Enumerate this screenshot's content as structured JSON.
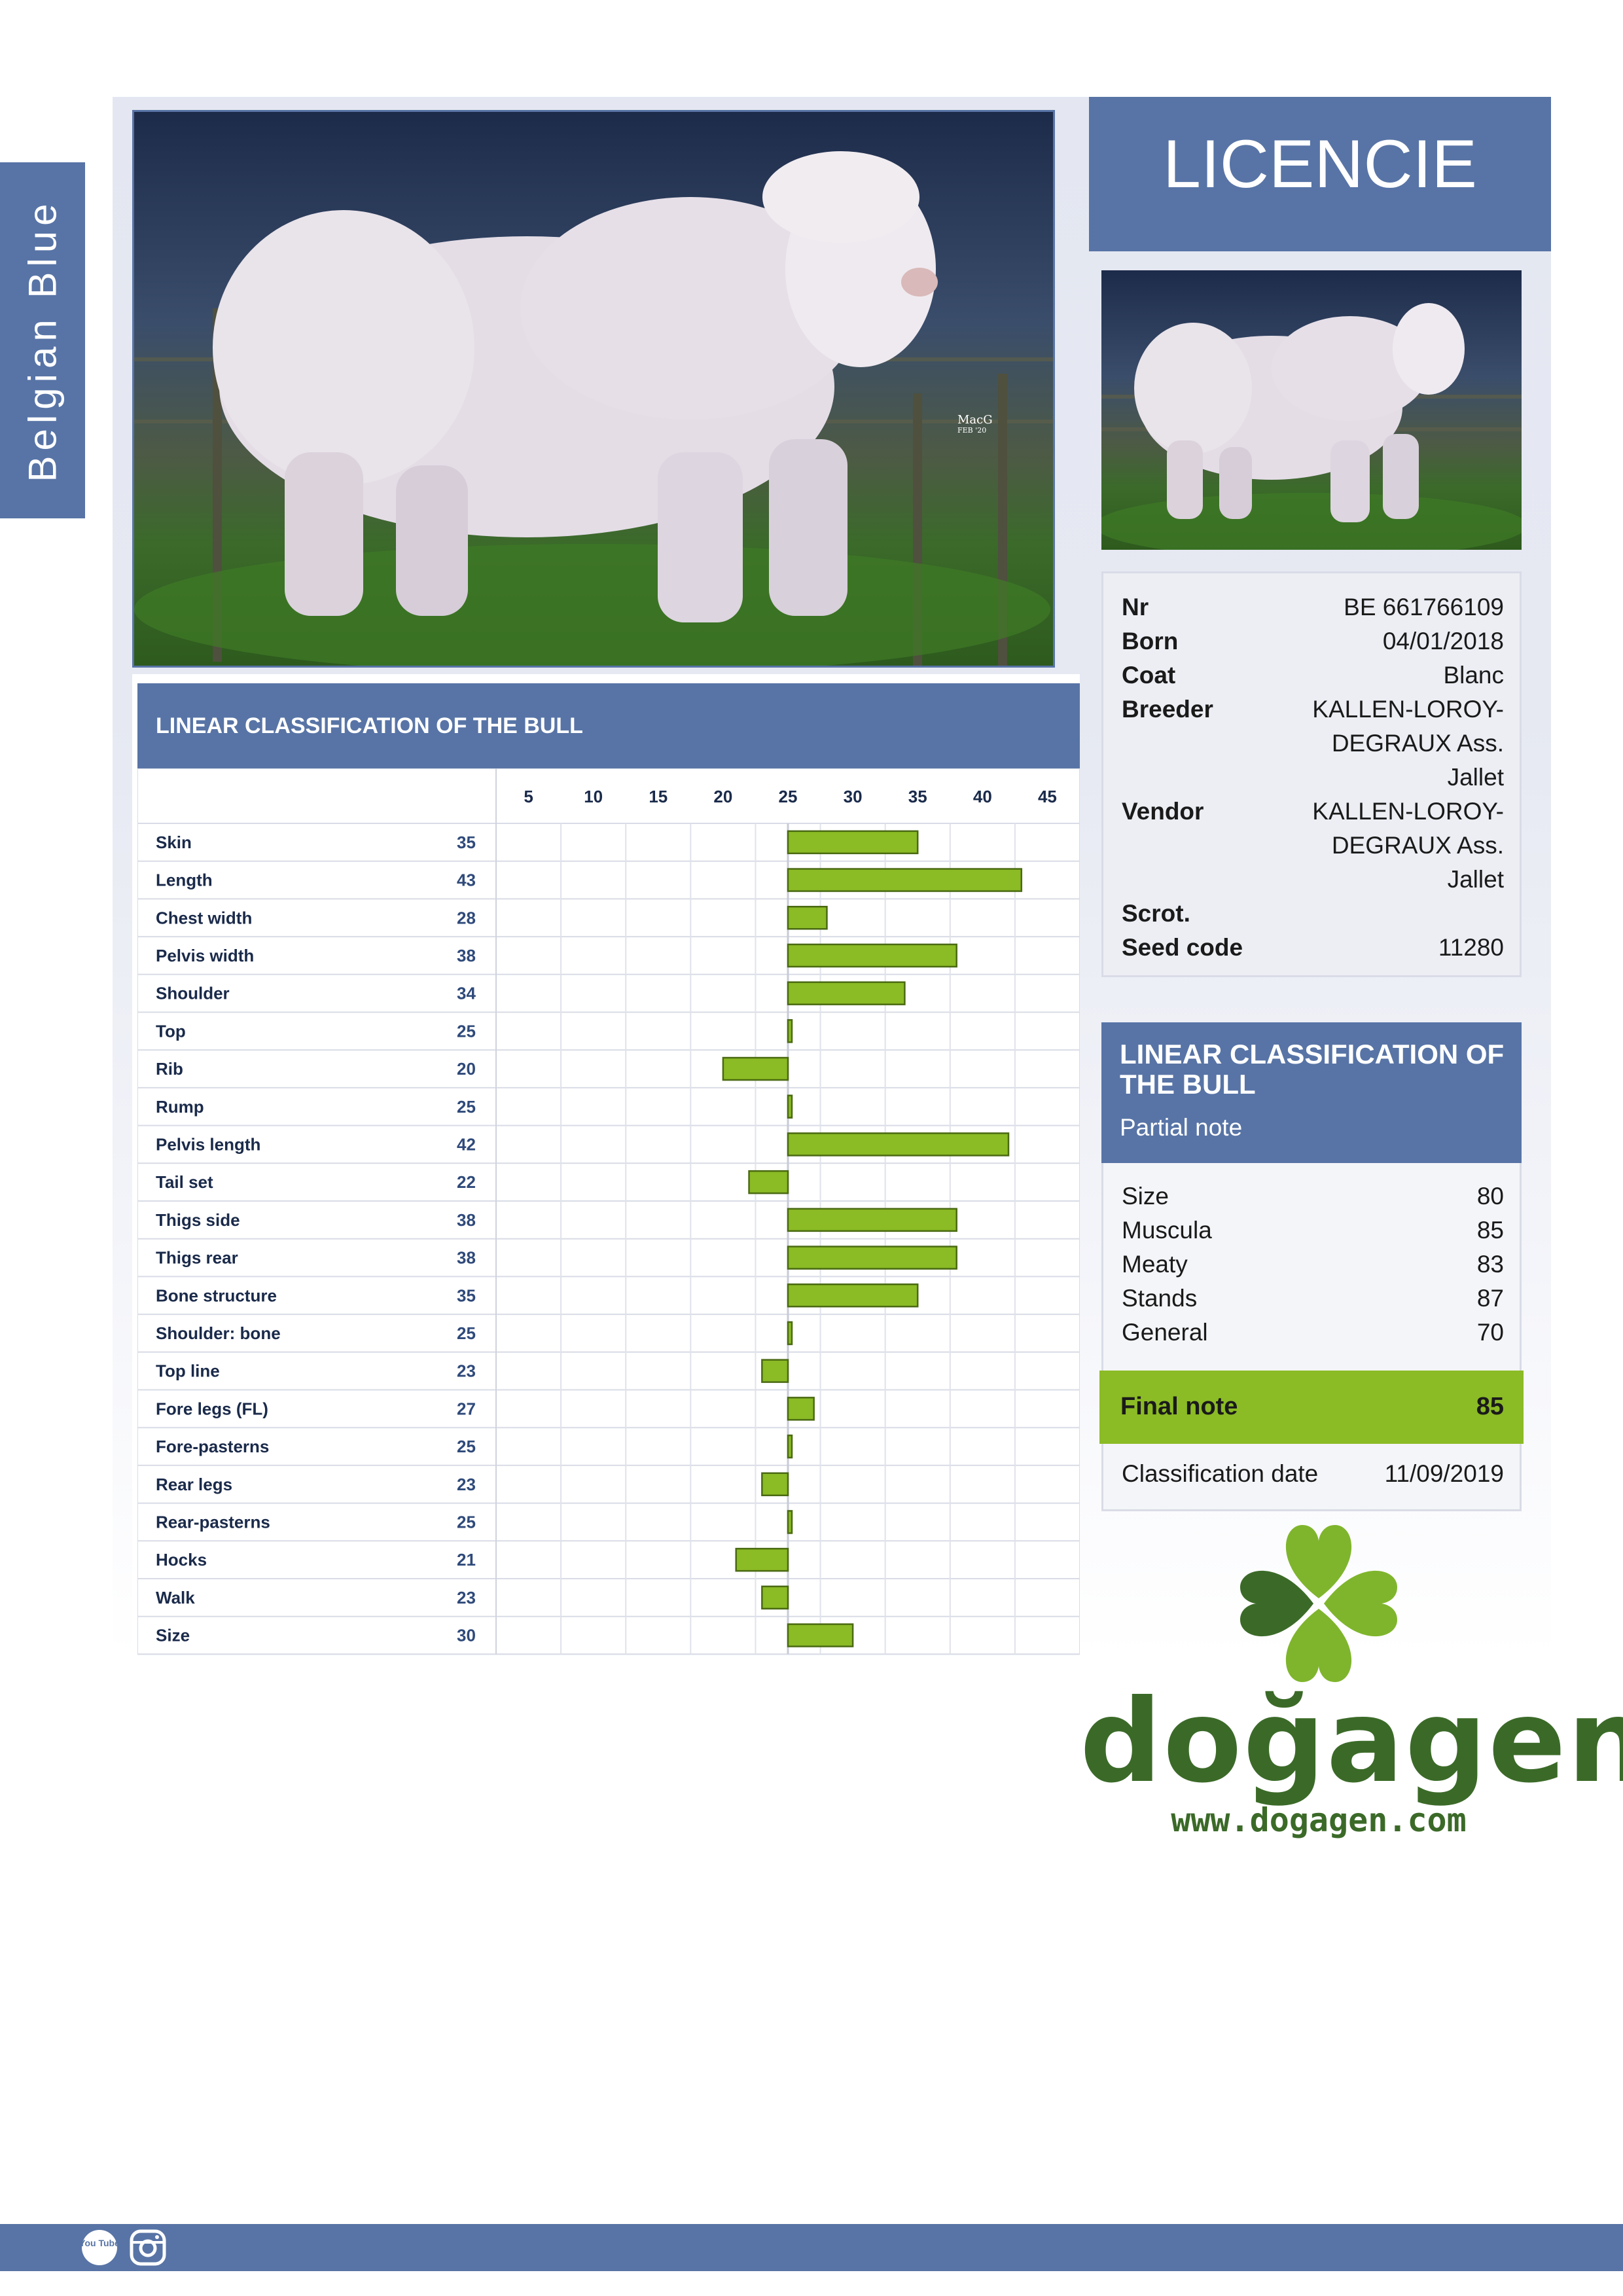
{
  "side_tab": {
    "label": "Belgian Blue"
  },
  "header": {
    "title": "LICENCIE"
  },
  "photo": {
    "watermark": "MacG",
    "watermark_date": "FEB '20"
  },
  "info": {
    "rows": [
      {
        "key": "Nr",
        "value": "BE 661766109"
      },
      {
        "key": "Born",
        "value": "04/01/2018"
      },
      {
        "key": "Coat",
        "value": "Blanc"
      },
      {
        "key": "Breeder",
        "value": "KALLEN-LOROY-DEGRAUX Ass. Jallet"
      },
      {
        "key": "Vendor",
        "value": "KALLEN-LOROY-DEGRAUX Ass. Jallet"
      },
      {
        "key": "Scrot.",
        "value": ""
      },
      {
        "key": "Seed code",
        "value": "11280"
      }
    ]
  },
  "linear_classification": {
    "title": "LINEAR CLASSIFICATION OF THE BULL",
    "subtitle": "Partial note",
    "partial_notes": [
      {
        "key": "Size",
        "value": "80"
      },
      {
        "key": "Muscula",
        "value": "85"
      },
      {
        "key": "Meaty",
        "value": "83"
      },
      {
        "key": "Stands",
        "value": "87"
      },
      {
        "key": "General",
        "value": "70"
      }
    ],
    "final_note_label": "Final note",
    "final_note_value": "85",
    "classification_date_label": "Classification date",
    "classification_date_value": "11/09/2019"
  },
  "chart_title": "LINEAR CLASSIFICATION OF THE BULL",
  "chart_data": {
    "type": "bar",
    "orientation": "horizontal",
    "title": "LINEAR CLASSIFICATION OF THE BULL",
    "baseline": 25,
    "xlim": [
      2.5,
      47.5
    ],
    "xticks": [
      5,
      10,
      15,
      20,
      25,
      30,
      35,
      40,
      45
    ],
    "grid": true,
    "bar_color": "#8bbb25",
    "categories": [
      "Skin",
      "Length",
      "Chest width",
      "Pelvis width",
      "Shoulder",
      "Top",
      "Rib",
      "Rump",
      "Pelvis length",
      "Tail set",
      "Thigs side",
      "Thigs rear",
      "Bone structure",
      "Shoulder: bone",
      "Top line",
      "Fore legs (FL)",
      "Fore-pasterns",
      "Rear legs",
      "Rear-pasterns",
      "Hocks",
      "Walk",
      "Size"
    ],
    "values": [
      35,
      43,
      28,
      38,
      34,
      25,
      20,
      25,
      42,
      22,
      38,
      38,
      35,
      25,
      23,
      27,
      25,
      23,
      25,
      21,
      23,
      30
    ]
  },
  "logo": {
    "name": "doğagen",
    "url": "www.dogagen.com"
  },
  "colors": {
    "brand_blue": "#5874a6",
    "bar_green": "#8bbb25",
    "logo_green": "#3b6a28",
    "clover_light": "#7fb52c"
  },
  "footer": {
    "icons": [
      "youtube-icon",
      "instagram-icon"
    ],
    "youtube_label": "You Tube"
  }
}
